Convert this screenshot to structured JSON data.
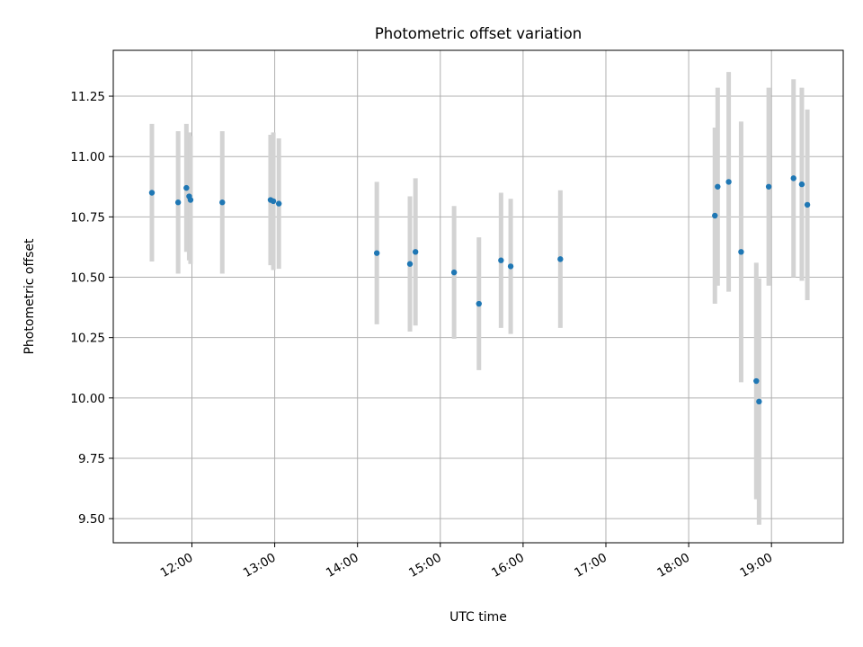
{
  "chart_data": {
    "type": "scatter",
    "title": "Photometric offset variation",
    "xlabel": "UTC time",
    "ylabel": "Photometric offset",
    "x_axis": "time",
    "xlim": [
      "11:03",
      "19:52"
    ],
    "ylim": [
      9.4,
      11.44
    ],
    "grid": true,
    "marker_color": "#1f77b4",
    "errorbar_color": "#d3d3d3",
    "x_ticks": [
      "12:00",
      "13:00",
      "14:00",
      "15:00",
      "16:00",
      "17:00",
      "18:00",
      "19:00"
    ],
    "y_ticks": [
      "9.50",
      "9.75",
      "10.00",
      "10.25",
      "10.50",
      "10.75",
      "11.00",
      "11.25"
    ],
    "points": [
      {
        "x": "11:31",
        "y": 10.85,
        "err": 0.285
      },
      {
        "x": "11:50",
        "y": 10.81,
        "err": 0.295
      },
      {
        "x": "11:56",
        "y": 10.87,
        "err": 0.265
      },
      {
        "x": "11:58",
        "y": 10.835,
        "err": 0.265
      },
      {
        "x": "11:59",
        "y": 10.82,
        "err": 0.265
      },
      {
        "x": "12:22",
        "y": 10.81,
        "err": 0.295
      },
      {
        "x": "12:57",
        "y": 10.82,
        "err": 0.27
      },
      {
        "x": "12:59",
        "y": 10.815,
        "err": 0.285
      },
      {
        "x": "13:03",
        "y": 10.805,
        "err": 0.27
      },
      {
        "x": "14:14",
        "y": 10.6,
        "err": 0.295
      },
      {
        "x": "14:38",
        "y": 10.555,
        "err": 0.28
      },
      {
        "x": "14:42",
        "y": 10.605,
        "err": 0.305
      },
      {
        "x": "15:10",
        "y": 10.52,
        "err": 0.275
      },
      {
        "x": "15:28",
        "y": 10.39,
        "err": 0.275
      },
      {
        "x": "15:44",
        "y": 10.57,
        "err": 0.28
      },
      {
        "x": "15:51",
        "y": 10.545,
        "err": 0.28
      },
      {
        "x": "16:27",
        "y": 10.575,
        "err": 0.285
      },
      {
        "x": "18:19",
        "y": 10.755,
        "err": 0.365
      },
      {
        "x": "18:21",
        "y": 10.875,
        "err": 0.41
      },
      {
        "x": "18:29",
        "y": 10.895,
        "err": 0.455
      },
      {
        "x": "18:38",
        "y": 10.605,
        "err": 0.54
      },
      {
        "x": "18:49",
        "y": 10.07,
        "err": 0.49
      },
      {
        "x": "18:51",
        "y": 9.985,
        "err": 0.51
      },
      {
        "x": "18:58",
        "y": 10.875,
        "err": 0.41
      },
      {
        "x": "19:16",
        "y": 10.91,
        "err": 0.41
      },
      {
        "x": "19:22",
        "y": 10.885,
        "err": 0.4
      },
      {
        "x": "19:26",
        "y": 10.8,
        "err": 0.395
      }
    ]
  }
}
